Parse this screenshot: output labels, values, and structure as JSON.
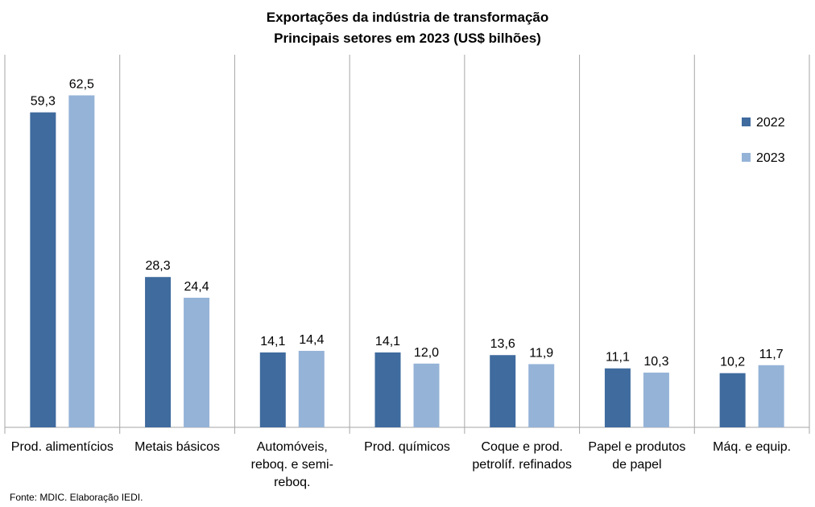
{
  "chart_data": {
    "type": "bar",
    "title": [
      "Exportações da indústria de transformação",
      "Principais setores em 2023 (US$ bilhões)"
    ],
    "categories": [
      [
        "Prod. alimentícios"
      ],
      [
        "Metais básicos"
      ],
      [
        "Automóveis,",
        "reboq. e semi-",
        "reboq."
      ],
      [
        "Prod. químicos"
      ],
      [
        "Coque e prod.",
        "petrolíf. refinados"
      ],
      [
        "Papel e produtos",
        "de papel"
      ],
      [
        "Máq. e equip."
      ]
    ],
    "series": [
      {
        "name": "2022",
        "color": "#3f6b9e",
        "values": [
          59.3,
          28.3,
          14.1,
          14.1,
          13.6,
          11.1,
          10.2
        ],
        "labels": [
          "59,3",
          "28,3",
          "14,1",
          "14,1",
          "13,6",
          "11,1",
          "10,2"
        ]
      },
      {
        "name": "2023",
        "color": "#95b3d7",
        "values": [
          62.5,
          24.4,
          14.4,
          12.0,
          11.9,
          10.3,
          11.7
        ],
        "labels": [
          "62,5",
          "24,4",
          "14,4",
          "12,0",
          "11,9",
          "10,3",
          "11,7"
        ]
      }
    ],
    "ylim": [
      0,
      70
    ],
    "grid": "vertical separators between categories",
    "legend": "right",
    "source": "Fonte: MDIC. Elaboração IEDI."
  }
}
